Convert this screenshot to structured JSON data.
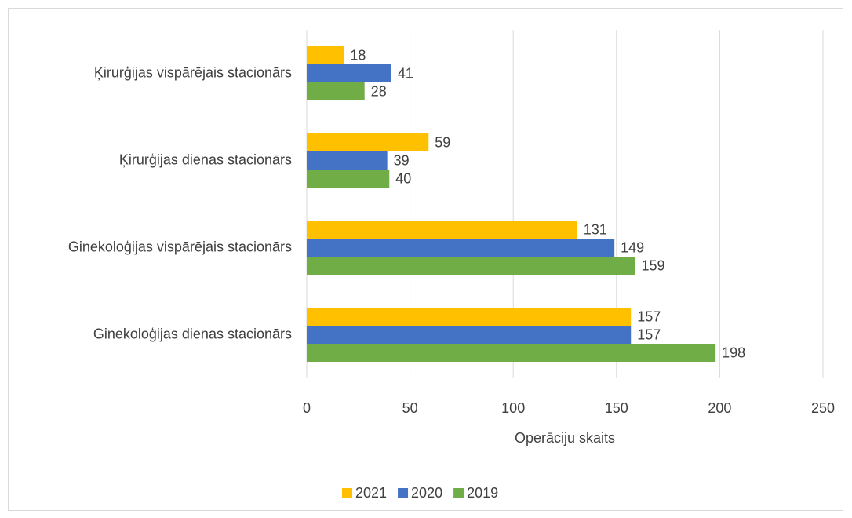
{
  "chart_data": {
    "type": "bar",
    "orientation": "horizontal",
    "categories": [
      "Ķirurģijas vispārējais stacionārs",
      "Ķirurģijas dienas stacionārs",
      "Ginekoloģijas vispārējais stacionārs",
      "Ginekoloģijas dienas stacionārs"
    ],
    "series": [
      {
        "name": "2021",
        "color": "#ffc000",
        "values": [
          18,
          59,
          131,
          157
        ]
      },
      {
        "name": "2020",
        "color": "#4472c4",
        "values": [
          41,
          39,
          149,
          157
        ]
      },
      {
        "name": "2019",
        "color": "#70ad47",
        "values": [
          28,
          40,
          159,
          198
        ]
      }
    ],
    "x_label": "Operāciju skaits",
    "xlim": [
      0,
      250
    ],
    "xticks": [
      0,
      50,
      100,
      150,
      200,
      250
    ],
    "grid": true,
    "legend": "bottom"
  }
}
